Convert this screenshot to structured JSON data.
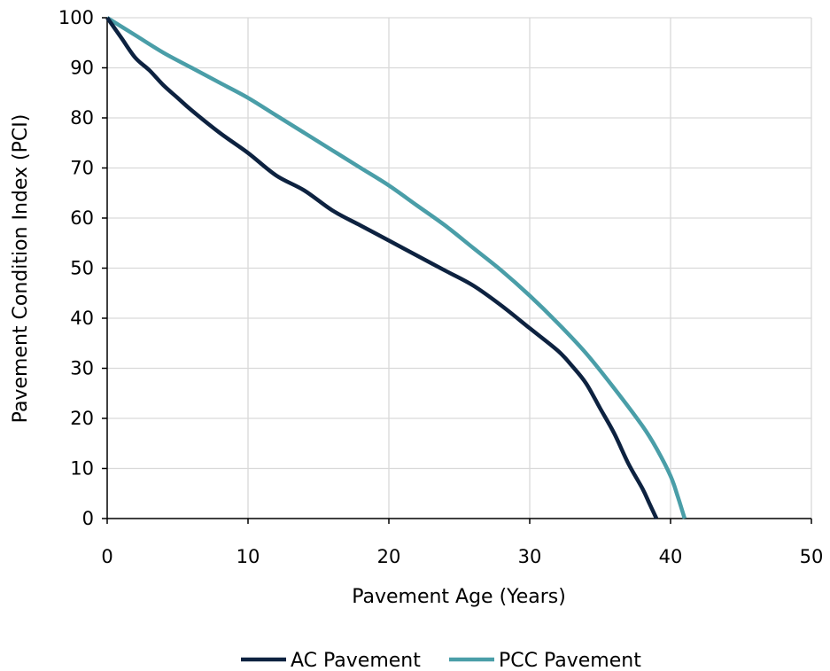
{
  "chart_data": {
    "type": "line",
    "title": "",
    "xlabel": "Pavement Age (Years)",
    "ylabel": "Pavement Condition Index (PCI)",
    "xlim": [
      0,
      50
    ],
    "ylim": [
      0,
      100
    ],
    "x_ticks": [
      0,
      10,
      20,
      30,
      40,
      50
    ],
    "y_ticks": [
      0,
      10,
      20,
      30,
      40,
      50,
      60,
      70,
      80,
      90,
      100
    ],
    "grid": true,
    "legend_position": "bottom",
    "series": [
      {
        "name": "AC Pavement",
        "color": "#0d2240",
        "x": [
          0,
          1,
          2,
          3,
          4,
          5,
          6,
          8,
          10,
          12,
          14,
          16,
          18,
          20,
          22,
          24,
          26,
          28,
          30,
          32,
          33,
          34,
          35,
          36,
          37,
          38,
          38.5,
          39
        ],
        "y": [
          100,
          96,
          92,
          89.5,
          86.5,
          84,
          81.5,
          77,
          73,
          68.5,
          65.5,
          61.5,
          58.5,
          55.5,
          52.5,
          49.5,
          46.5,
          42.5,
          38,
          33.5,
          30.5,
          27,
          22,
          17,
          11,
          6,
          3,
          0
        ]
      },
      {
        "name": "PCC Pavement",
        "color": "#4a9ea8",
        "x": [
          0,
          2,
          4,
          6,
          8,
          10,
          12,
          14,
          16,
          18,
          20,
          22,
          24,
          26,
          28,
          30,
          32,
          34,
          36,
          38,
          39,
          40,
          40.5,
          41
        ],
        "y": [
          100,
          96.5,
          93,
          90,
          87,
          84,
          80.5,
          77,
          73.5,
          70,
          66.5,
          62.5,
          58.5,
          54,
          49.5,
          44.5,
          39,
          33,
          26,
          18.5,
          14,
          8.5,
          4.5,
          0
        ]
      }
    ]
  }
}
